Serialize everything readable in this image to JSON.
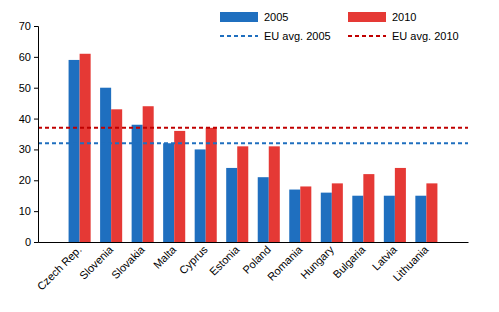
{
  "chart_data": {
    "type": "bar",
    "categories": [
      "Czech Rep.",
      "Slovenia",
      "Slovakia",
      "Malta",
      "Cyprus",
      "Estonia",
      "Poland",
      "Romania",
      "Hungary",
      "Bulgaria",
      "Latvia",
      "Lithuania"
    ],
    "series": [
      {
        "name": "2005",
        "color": "#1f6fbf",
        "values": [
          59,
          50,
          38,
          32,
          30,
          24,
          21,
          17,
          16,
          15,
          15,
          15
        ]
      },
      {
        "name": "2010",
        "color": "#e53935",
        "values": [
          61,
          43,
          44,
          36,
          37,
          31,
          31,
          18,
          19,
          22,
          24,
          19
        ]
      }
    ],
    "reference_lines": [
      {
        "name": "EU avg. 2005",
        "value": 32,
        "color": "#1f6fbf",
        "line_style": "dashed"
      },
      {
        "name": "EU avg. 2010",
        "value": 37,
        "color": "#c00000",
        "line_style": "dashed"
      }
    ],
    "ylim": [
      0,
      70
    ],
    "yticks": [
      0,
      10,
      20,
      30,
      40,
      50,
      60,
      70
    ],
    "grid": false,
    "legend": "top-right"
  }
}
